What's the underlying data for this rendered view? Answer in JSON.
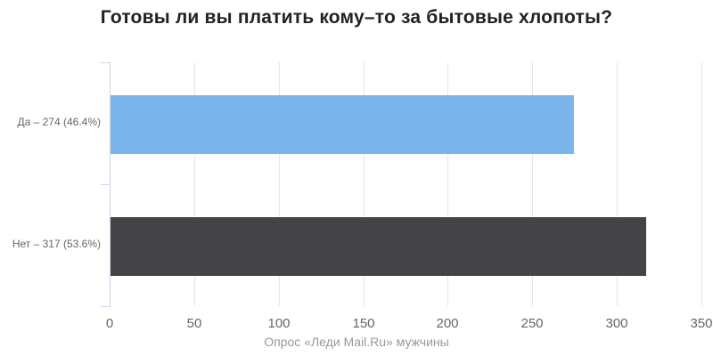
{
  "chart_data": {
    "type": "bar",
    "title": "Готовы ли вы платить кому–то за бытовые хлопоты?",
    "caption": "Опрос «Леди Mail.Ru» мужчины",
    "categories": [
      "Да",
      "Нет"
    ],
    "category_names": [
      "yes",
      "no"
    ],
    "category_labels": [
      "Да – 274 (46.4%)",
      "Нет – 317 (53.6%)"
    ],
    "values": [
      274,
      317
    ],
    "percentages": [
      46.4,
      53.6
    ],
    "xlabel": "",
    "ylabel": "",
    "axis": {
      "min": 0,
      "max": 350,
      "tick_interval": 50,
      "ticks": [
        0,
        50,
        100,
        150,
        200,
        250,
        300,
        350
      ]
    },
    "grid": true,
    "legend_position": "none",
    "colors": {
      "bars": [
        "#7cb5ec",
        "#434348"
      ],
      "gridline": "#e6e6e6",
      "axis_line": "#ccd6eb",
      "tick_label": "#666666",
      "category_label": "#666666",
      "caption": "#999999",
      "title": "#222222"
    }
  }
}
